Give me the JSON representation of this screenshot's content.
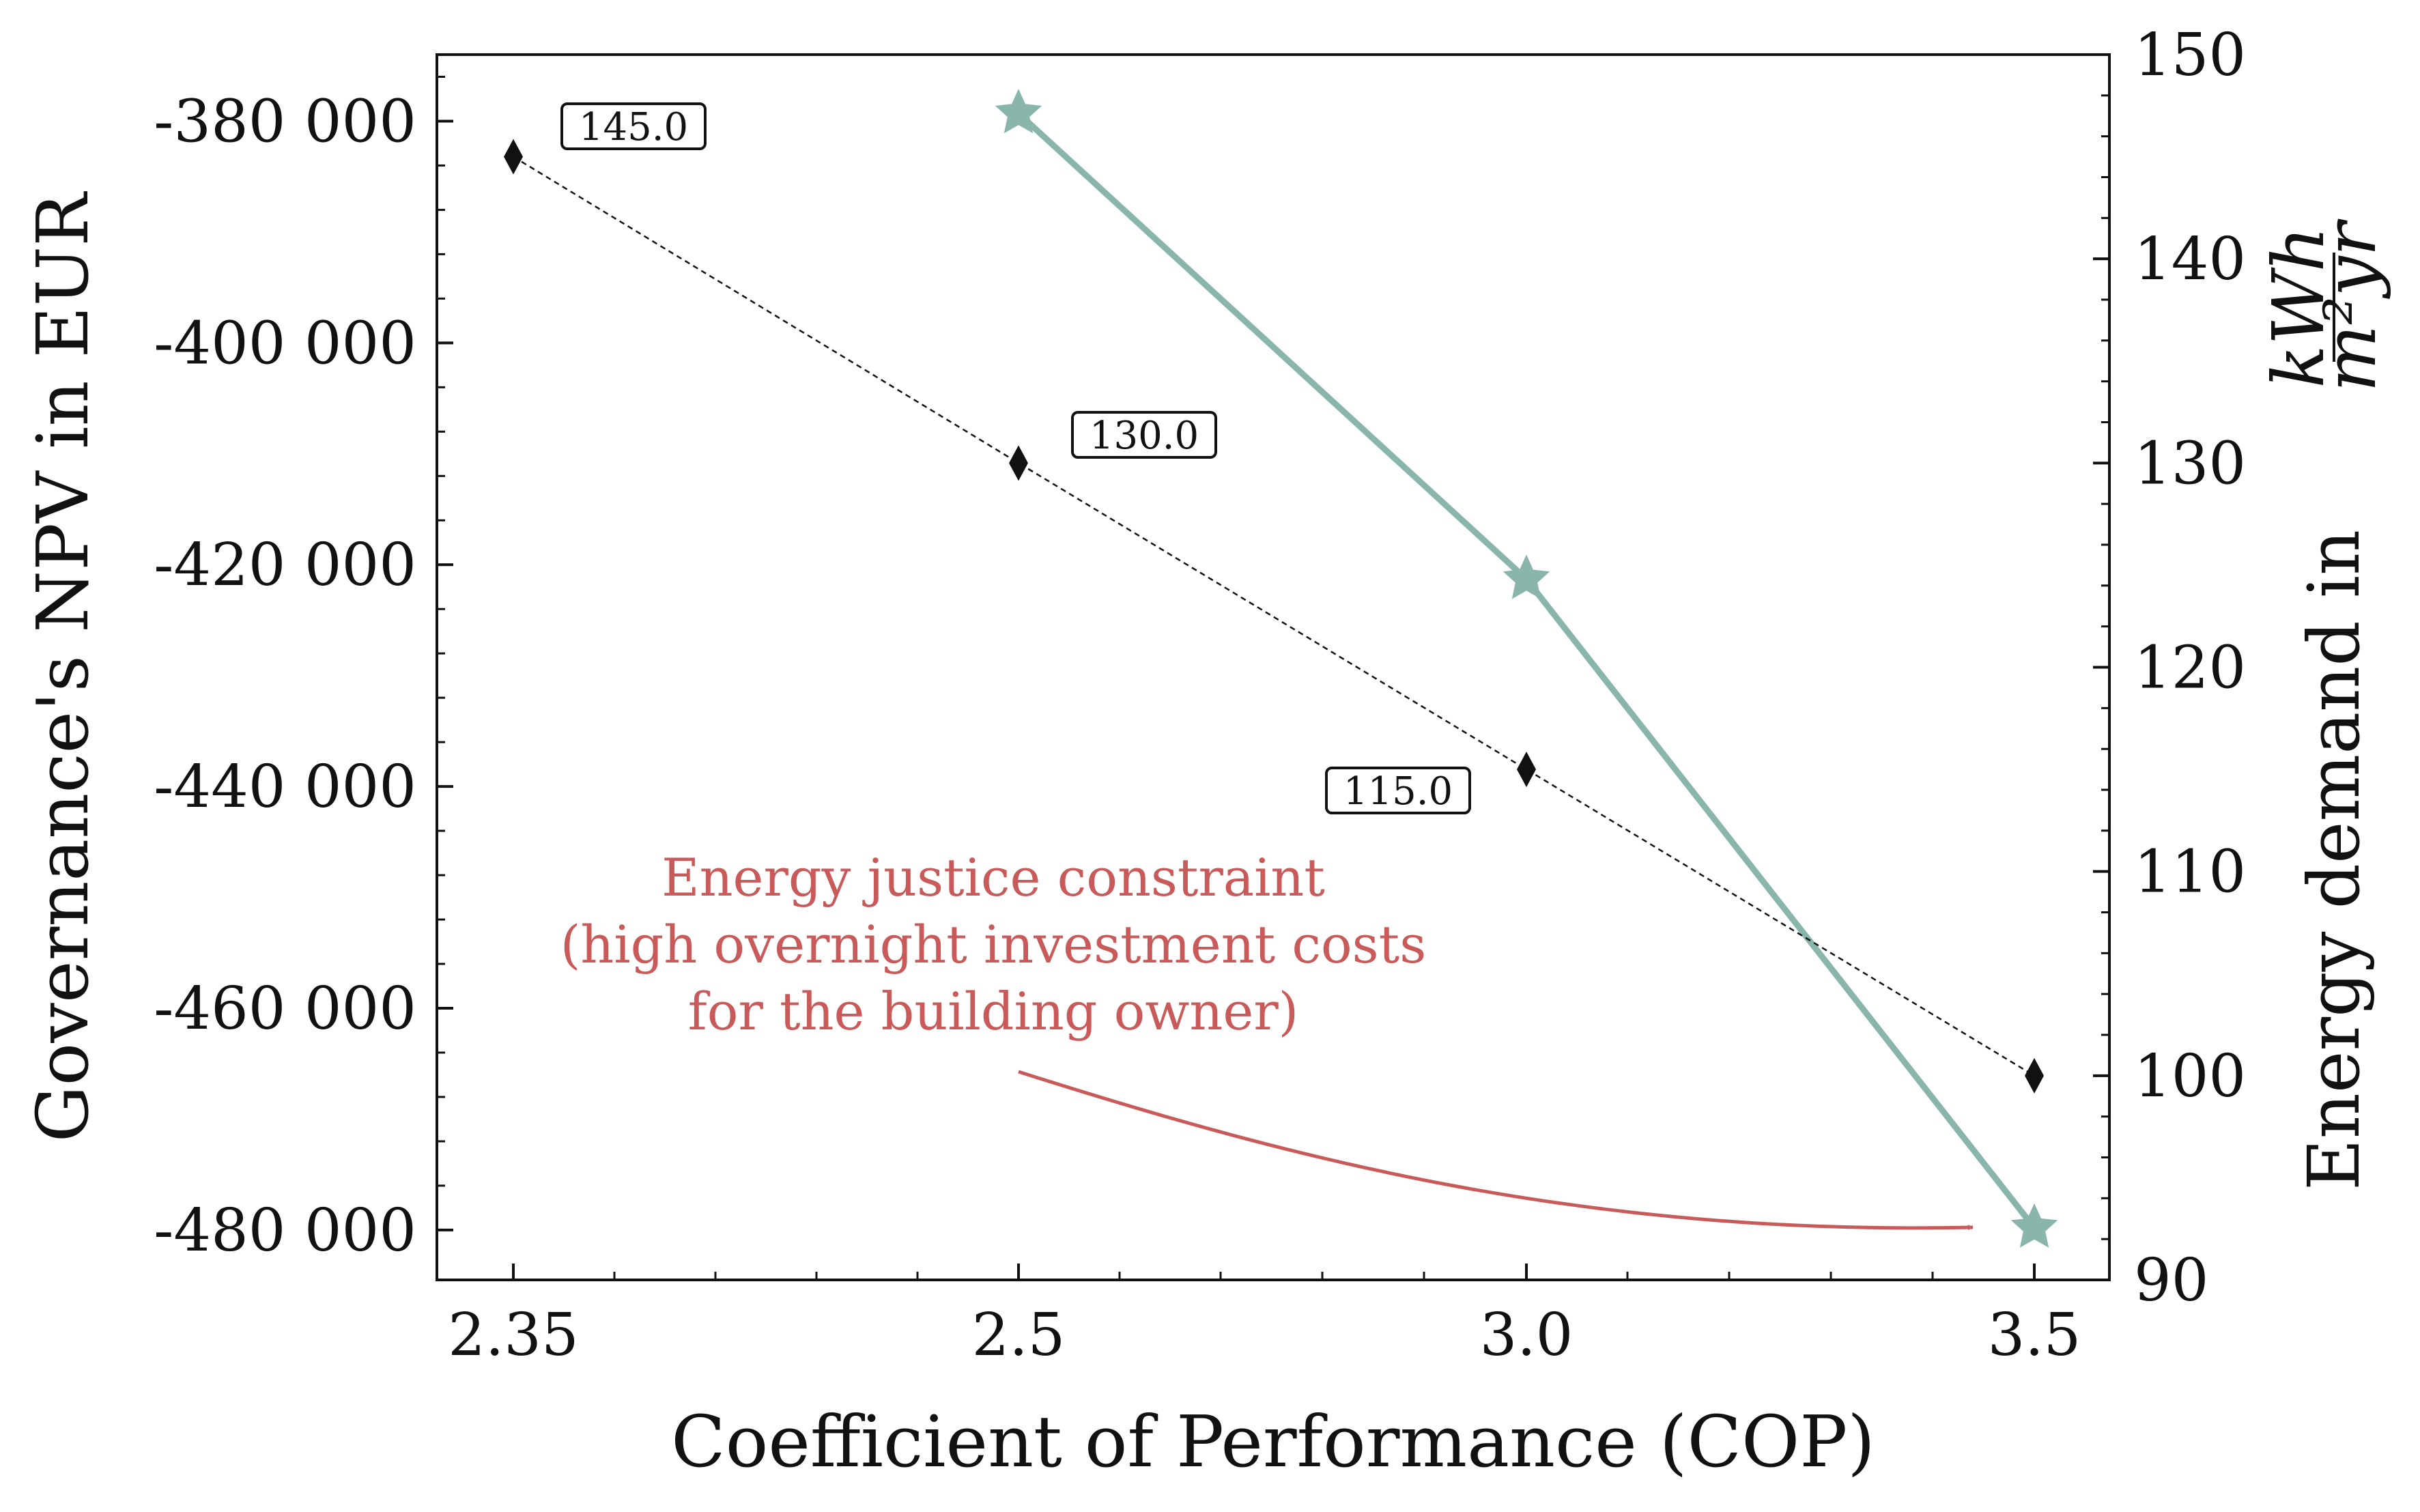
{
  "chart_data": {
    "type": "line",
    "x": {
      "label": "Coefficient of Performance (COP)",
      "categories": [
        "2.35",
        "2.5",
        "3.0",
        "3.5"
      ]
    },
    "y_left": {
      "label": "Governance's NPV in EUR",
      "ticks": [
        "-380 000",
        "-400 000",
        "-420 000",
        "-440 000",
        "-460 000",
        "-480 000"
      ],
      "range": [
        -484500,
        -374000
      ]
    },
    "y_right": {
      "label": "Energy demand in",
      "unit_numerator": "kWh",
      "unit_denominator": "m²yr",
      "ticks": [
        "150",
        "140",
        "130",
        "120",
        "110",
        "100",
        "90"
      ],
      "range": [
        90,
        150
      ]
    },
    "series": [
      {
        "axis": "left",
        "style": "solid",
        "marker": "star",
        "color": "#8ab5ac",
        "points": [
          {
            "x": "2.5",
            "y": -379300
          },
          {
            "x": "3.0",
            "y": -421300
          },
          {
            "x": "3.5",
            "y": -479800
          }
        ]
      },
      {
        "axis": "right",
        "style": "dashed",
        "marker": "diamond",
        "color": "#111111",
        "points": [
          {
            "x": "2.35",
            "y": 145.0
          },
          {
            "x": "2.5",
            "y": 130.0
          },
          {
            "x": "3.0",
            "y": 115.0
          },
          {
            "x": "3.5",
            "y": 100.0
          }
        ]
      }
    ],
    "data_labels": [
      "145.0",
      "130.0",
      "115.0"
    ],
    "annotation": {
      "lines": [
        "Energy justice constraint",
        "(high overnight investment costs",
        "for the building owner)"
      ],
      "color": "#c85a5a",
      "points_to": {
        "x": "3.5",
        "y": -479800
      }
    }
  }
}
